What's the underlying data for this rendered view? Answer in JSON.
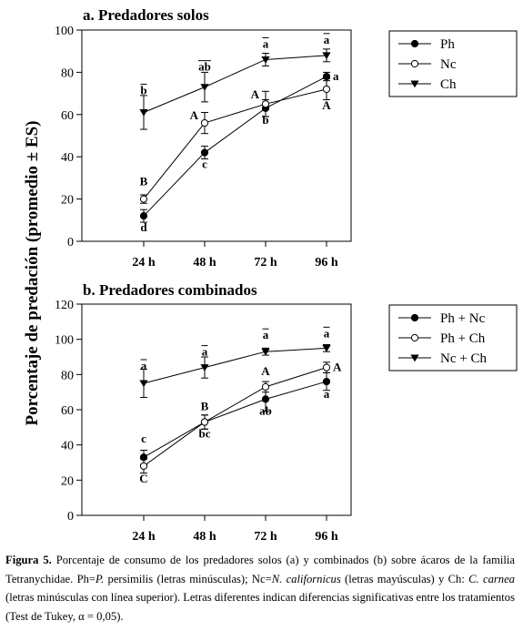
{
  "figure": {
    "y_axis_label": "Porcentaje de predación (promedio ± ES)"
  },
  "chart_data": [
    {
      "type": "line",
      "title": "a. Predadores solos",
      "categories": [
        "24 h",
        "48 h",
        "72 h",
        "96 h"
      ],
      "ylim": [
        0,
        100
      ],
      "yticks": [
        0,
        20,
        40,
        60,
        80,
        100
      ],
      "legend_position": "top-right",
      "grid": false,
      "series": [
        {
          "name": "Ph",
          "marker": "circle-filled",
          "values": [
            12,
            42,
            63,
            78
          ],
          "errors": [
            3,
            3,
            4,
            2
          ],
          "letters": [
            "d",
            "c",
            "b",
            "a"
          ],
          "overline": false
        },
        {
          "name": "Nc",
          "marker": "circle-open",
          "values": [
            20,
            56,
            65,
            72
          ],
          "errors": [
            2,
            5,
            6,
            5
          ],
          "letters": [
            "B",
            "A",
            "A",
            "A"
          ],
          "overline": false
        },
        {
          "name": "Ch",
          "marker": "triangle-down-filled",
          "values": [
            61,
            73,
            86,
            88
          ],
          "errors": [
            8,
            7,
            3,
            3
          ],
          "letters": [
            "b",
            "ab",
            "a",
            "a"
          ],
          "overline": true
        }
      ]
    },
    {
      "type": "line",
      "title": "b. Predadores combinados",
      "categories": [
        "24 h",
        "48 h",
        "72 h",
        "96 h"
      ],
      "ylim": [
        0,
        120
      ],
      "yticks": [
        0,
        20,
        40,
        60,
        80,
        100,
        120
      ],
      "legend_position": "top-right",
      "grid": false,
      "series": [
        {
          "name": "Ph + Nc",
          "marker": "circle-filled",
          "values": [
            33,
            53,
            66,
            76
          ],
          "errors": [
            4,
            4,
            7,
            5
          ],
          "letters": [
            "c",
            "bc",
            "ab",
            "a"
          ],
          "overline": false
        },
        {
          "name": "Ph + Ch",
          "marker": "circle-open",
          "values": [
            28,
            53,
            73,
            84
          ],
          "errors": [
            4,
            4,
            3,
            3
          ],
          "letters": [
            "C",
            "B",
            "A",
            "A"
          ],
          "overline": false
        },
        {
          "name": "Nc  + Ch",
          "marker": "triangle-down-filled",
          "values": [
            75,
            84,
            93,
            95
          ],
          "errors": [
            8,
            6,
            2,
            2
          ],
          "letters": [
            "a",
            "a",
            "a",
            "a"
          ],
          "overline": true
        }
      ]
    }
  ],
  "caption": {
    "label": "Figura 5.",
    "t1": " Porcentaje de consumo de los predadores solos (a) y combinados (b) sobre ácaros de la familia Tetranychidae. Ph=",
    "i1": "P.",
    "t2": " persimilis (letras minúsculas); Nc=",
    "i2": "N. californicus",
    "t3": " (letras mayúsculas) y Ch: ",
    "i3": "C. carnea",
    "t4": " (letras minúsculas con línea superior). Letras diferentes indican diferencias significativas entre los tratamientos (Test de Tukey, α = 0,05)."
  }
}
